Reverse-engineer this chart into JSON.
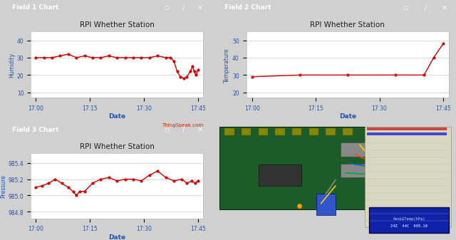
{
  "fig_width": 6.5,
  "fig_height": 3.38,
  "bg_color": "#d0d0d0",
  "panel_bg": "#ffffff",
  "header_color": "#1a3a9c",
  "header_text_color": "#ffffff",
  "chart_title": "RPI Whether Station",
  "xlabel": "Date",
  "thingspeak_text": "ThingSpeak.com",
  "thingspeak_color": "#cc2200",
  "chart1_title": "Field 1 Chart",
  "chart1_ylabel": "Humidity",
  "chart1_yticks": [
    10,
    20,
    30,
    40
  ],
  "chart1_ylim": [
    7,
    45
  ],
  "chart1_xticks": [
    "17:00",
    "17:15",
    "17:30",
    "17:45"
  ],
  "chart1_data_x": [
    0,
    0.5,
    1,
    1.5,
    2,
    2.5,
    3,
    3.5,
    4,
    4.5,
    5,
    5.5,
    6,
    6.5,
    7,
    7.5,
    8,
    8.3,
    8.5,
    8.7,
    8.9,
    9.1,
    9.3,
    9.5,
    9.65,
    9.75,
    9.85,
    10.0
  ],
  "chart1_data_y": [
    30,
    30,
    30,
    31,
    32,
    30,
    31,
    30,
    30,
    31,
    30,
    30,
    30,
    30,
    30,
    31,
    30,
    30,
    28,
    22,
    19,
    18,
    19,
    22,
    25,
    22,
    20,
    23
  ],
  "chart2_title": "Field 2 Chart",
  "chart2_ylabel": "Temperature",
  "chart2_yticks": [
    20,
    30,
    40,
    50
  ],
  "chart2_ylim": [
    17,
    55
  ],
  "chart2_xticks": [
    "17:00",
    "17:15",
    "17:30",
    "17:45"
  ],
  "chart2_data_x": [
    0,
    2.5,
    5,
    7.5,
    9.0,
    9.5,
    10.0
  ],
  "chart2_data_y": [
    29,
    30,
    30,
    30,
    30,
    40,
    48
  ],
  "chart3_title": "Field 3 Chart",
  "chart3_ylabel": "Pressure",
  "chart3_yticks": [
    984.8,
    985.0,
    985.2,
    985.4
  ],
  "chart3_ylim": [
    984.72,
    985.52
  ],
  "chart3_xticks": [
    "17:00",
    "17:15",
    "17:30",
    "17:45"
  ],
  "chart3_data_x": [
    0,
    0.4,
    0.8,
    1.2,
    1.6,
    2.0,
    2.3,
    2.5,
    2.7,
    3.0,
    3.5,
    4.0,
    4.5,
    5.0,
    5.5,
    6.0,
    6.5,
    7.0,
    7.5,
    8.0,
    8.5,
    9.0,
    9.3,
    9.6,
    9.8,
    10.0
  ],
  "chart3_data_y": [
    985.1,
    985.12,
    985.15,
    985.2,
    985.15,
    985.1,
    985.05,
    985.0,
    985.05,
    985.05,
    985.15,
    985.2,
    985.22,
    985.18,
    985.2,
    985.2,
    985.18,
    985.25,
    985.3,
    985.22,
    985.18,
    985.2,
    985.15,
    985.18,
    985.15,
    985.18
  ],
  "line_color": "#cc0000",
  "line_width": 1.0,
  "marker": "o",
  "marker_size": 2,
  "grid_color": "#cccccc",
  "tick_color": "#2255aa",
  "axis_label_color": "#2255aa",
  "photo_bg": "#5abfbf",
  "photo_board_color": "#1a5c2a",
  "photo_lcd_color": "#1133aa",
  "photo_lcd_text_color": "#88aaff",
  "photo_bread_color": "#e8e8d0"
}
